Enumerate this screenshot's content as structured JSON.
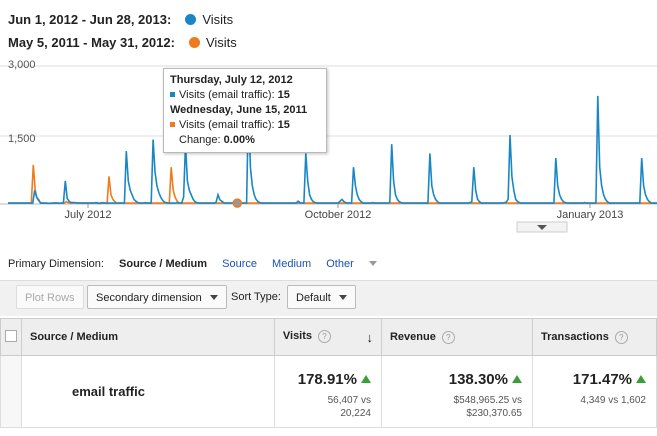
{
  "legend": [
    {
      "range": "Jun 1, 2012 - Jun 28, 2013:",
      "series": "Visits",
      "color": "#1a87c5"
    },
    {
      "range": "May 5, 2011 - May 31, 2012:",
      "series": "Visits",
      "color": "#ee7b1c"
    }
  ],
  "chart_data": {
    "type": "line",
    "y_ticks": [
      "3,000",
      "1,500"
    ],
    "x_ticks": [
      "July 2012",
      "October 2012",
      "January 2013"
    ],
    "ylim": [
      0,
      3000
    ],
    "grid": true,
    "series": [
      {
        "color": "#1a87c5",
        "values": [
          20,
          20,
          20,
          20,
          20,
          20,
          20,
          20,
          20,
          20,
          20,
          20,
          20,
          20,
          300,
          150,
          100,
          20,
          20,
          20,
          20,
          15,
          15,
          20,
          20,
          20,
          20,
          15,
          20,
          20,
          500,
          120,
          60,
          30,
          30,
          30,
          20,
          20,
          20,
          20,
          20,
          20,
          20,
          20,
          20,
          20,
          30,
          15,
          15,
          30,
          20,
          20,
          20,
          20,
          20,
          20,
          20,
          20,
          20,
          20,
          20,
          20,
          1150,
          500,
          300,
          200,
          100,
          60,
          30,
          20,
          20,
          20,
          30,
          20,
          20,
          20,
          1400,
          700,
          400,
          250,
          150,
          80,
          40,
          30,
          20,
          20,
          20,
          20,
          20,
          30,
          20,
          20,
          150,
          1300,
          500,
          300,
          200,
          100,
          50,
          30,
          20,
          20,
          20,
          20,
          20,
          20,
          20,
          20,
          20,
          40,
          200,
          90,
          60,
          30,
          20,
          20,
          20,
          20,
          20,
          20,
          20,
          20,
          20,
          20,
          20,
          20,
          2200,
          800,
          400,
          200,
          100,
          50,
          30,
          20,
          20,
          20,
          20,
          20,
          20,
          20,
          20,
          20,
          20,
          20,
          20,
          20,
          20,
          20,
          20,
          20,
          20,
          20,
          60,
          30,
          20,
          20,
          1100,
          500,
          200,
          100,
          50,
          30,
          20,
          20,
          20,
          20,
          20,
          20,
          20,
          20,
          20,
          20,
          20,
          20,
          60,
          100,
          50,
          30,
          20,
          20,
          20,
          800,
          400,
          200,
          100,
          50,
          20,
          20,
          20,
          20,
          20,
          30,
          20,
          20,
          20,
          20,
          20,
          20,
          20,
          20,
          30,
          1300,
          500,
          200,
          100,
          50,
          30,
          20,
          20,
          20,
          20,
          20,
          20,
          20,
          20,
          20,
          20,
          20,
          20,
          20,
          20,
          1100,
          400,
          200,
          100,
          50,
          20,
          20,
          20,
          20,
          20,
          20,
          20,
          20,
          20,
          20,
          20,
          20,
          20,
          20,
          20,
          20,
          30,
          50,
          800,
          300,
          100,
          50,
          20,
          20,
          20,
          20,
          20,
          20,
          20,
          20,
          20,
          20,
          20,
          20,
          30,
          40,
          100,
          1500,
          600,
          300,
          100,
          50,
          30,
          20,
          20,
          20,
          20,
          20,
          20,
          20,
          20,
          20,
          20,
          20,
          20,
          20,
          20,
          20,
          20,
          20,
          20,
          1000,
          400,
          200,
          100,
          50,
          30,
          20,
          20,
          20,
          20,
          20,
          20,
          20,
          20,
          20,
          30,
          20,
          20,
          20,
          20,
          20,
          20,
          2350,
          800,
          400,
          200,
          100,
          50,
          20,
          20,
          20,
          20,
          20,
          20,
          20,
          20,
          20,
          20,
          20,
          20,
          20,
          20,
          20,
          20,
          20,
          1000,
          400,
          200,
          100,
          50,
          20,
          20,
          20,
          20
        ]
      },
      {
        "color": "#ee7b1c",
        "values": [
          20,
          20,
          20,
          20,
          20,
          20,
          20,
          20,
          20,
          20,
          20,
          20,
          20,
          850,
          300,
          120,
          60,
          20,
          20,
          20,
          20,
          15,
          15,
          20,
          20,
          20,
          20,
          15,
          20,
          20,
          50,
          30,
          20,
          20,
          20,
          30,
          20,
          20,
          20,
          20,
          20,
          20,
          20,
          20,
          20,
          20,
          30,
          15,
          15,
          30,
          20,
          20,
          600,
          200,
          100,
          50,
          20,
          20,
          20,
          20,
          20,
          20,
          20,
          20,
          20,
          20,
          20,
          20,
          20,
          20,
          20,
          20,
          20,
          20,
          20,
          20,
          20,
          20,
          20,
          20,
          20,
          20,
          20,
          20,
          800,
          300,
          150,
          60,
          20,
          20,
          20,
          20,
          20,
          20,
          20,
          20,
          20,
          20,
          20,
          20,
          20,
          20,
          20,
          20,
          20,
          20,
          20,
          20,
          20,
          20,
          20,
          20,
          20,
          20,
          20,
          20,
          20,
          20,
          20,
          20,
          20,
          20,
          20,
          20,
          20,
          20,
          20,
          20,
          20,
          20,
          20,
          20,
          20,
          20,
          20,
          20,
          20,
          20,
          20,
          20,
          20,
          20,
          20,
          20,
          20,
          20,
          20,
          20,
          20,
          20,
          20,
          20,
          20,
          20,
          20,
          20,
          20,
          20,
          20,
          20,
          20,
          20,
          20,
          20,
          20,
          20,
          20,
          20,
          20,
          20,
          20,
          20,
          20,
          20,
          20,
          20,
          20,
          20,
          20,
          20,
          20,
          20,
          20,
          20,
          20,
          20,
          20,
          20,
          20,
          20,
          20,
          20,
          20,
          20,
          20,
          20,
          20,
          20,
          20,
          20,
          20,
          20,
          20,
          20,
          20,
          20,
          20,
          20,
          20,
          20,
          20,
          20,
          20,
          20,
          20,
          20,
          20,
          20,
          20,
          20,
          20,
          20,
          20,
          20,
          20,
          20,
          20,
          20,
          20,
          20,
          20,
          20,
          20,
          20,
          20,
          20,
          20,
          20,
          20,
          20,
          20,
          20,
          20,
          20,
          20,
          20,
          20,
          20,
          20,
          20,
          20,
          20,
          20,
          20,
          20,
          20,
          20,
          20,
          20,
          20,
          20,
          20,
          20,
          20,
          20,
          20,
          20,
          20,
          20,
          20,
          20,
          20,
          20,
          20,
          20,
          20,
          20,
          20,
          20,
          20,
          20,
          20,
          20,
          20,
          20,
          20,
          20,
          20,
          20,
          20,
          20,
          20,
          20,
          20,
          20,
          20,
          20,
          20,
          20,
          20,
          20,
          20,
          20,
          20,
          20,
          20,
          20,
          20,
          20,
          20,
          20,
          20,
          20,
          20,
          20,
          20,
          20,
          20,
          20,
          20,
          20,
          20,
          20,
          20,
          20,
          20,
          20,
          20,
          20,
          20,
          20,
          20,
          20,
          20,
          20
        ]
      }
    ],
    "marker_index": 118
  },
  "tooltip": {
    "date1": "Thursday, July 12, 2012",
    "row1_label": "Visits (email traffic):",
    "row1_value": "15",
    "date2": "Wednesday, June 15, 2011",
    "row2_label": "Visits (email traffic):",
    "row2_value": "15",
    "change_label": "Change:",
    "change_value": "0.00%"
  },
  "dimensions": {
    "label": "Primary Dimension:",
    "current": "Source / Medium",
    "links": [
      "Source",
      "Medium"
    ],
    "other": "Other"
  },
  "toolbar": {
    "plot_rows": "Plot Rows",
    "secondary": "Secondary dimension",
    "sort_label": "Sort Type:",
    "sort_value": "Default"
  },
  "table": {
    "headers": {
      "source": "Source / Medium",
      "visits": "Visits",
      "revenue": "Revenue",
      "transactions": "Transactions"
    },
    "row": {
      "name": "email traffic",
      "visits_pct": "178.91%",
      "visits_cmp1": "56,407 vs",
      "visits_cmp2": "20,224",
      "revenue_pct": "138.30%",
      "revenue_cmp1": "$548,965.25 vs",
      "revenue_cmp2": "$230,370.65",
      "trans_pct": "171.47%",
      "trans_cmp": "4,349 vs 1,602"
    }
  }
}
